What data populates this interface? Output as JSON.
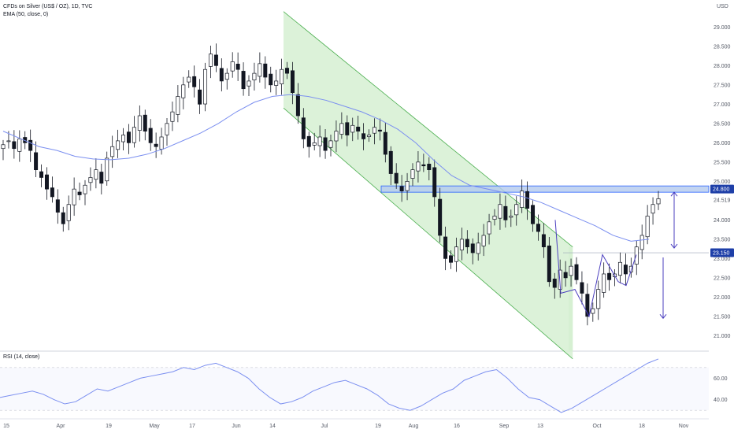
{
  "header": {
    "symbol_line": "CFDs on Silver (US$ / OZ), 1D, TVC",
    "indicator_line": "EMA (50, close, 0)",
    "currency": "USD"
  },
  "rsi_label": "RSI (14, close)",
  "price_labels": {
    "resistance": "24.800",
    "support": "23.150",
    "last": "24.519"
  },
  "colors": {
    "bull": "#ffffff",
    "bear": "#131722",
    "wick": "#131722",
    "ema": "#7b8ff0",
    "channel_fill": "#d6f0d2",
    "channel_line": "#4caf50",
    "zone_fill": "#b3c9ee",
    "zone_line": "#2962ff",
    "label_bg": "#1e3fa8",
    "pattern": "#4b3fbf",
    "rsi": "#7b8ff0"
  },
  "chart_data": {
    "type": "candlestick",
    "x_labels": [
      "15",
      "Apr",
      "19",
      "May",
      "17",
      "Jun",
      "14",
      "Jul",
      "19",
      "Aug",
      "16",
      "Sep",
      "13",
      "Oct",
      "18",
      "Nov"
    ],
    "y_ticks": [
      "29.000",
      "28.500",
      "28.000",
      "27.500",
      "27.000",
      "26.500",
      "26.000",
      "25.500",
      "25.000",
      "24.519",
      "24.000",
      "23.500",
      "23.000",
      "22.500",
      "22.000",
      "21.500",
      "21.000"
    ],
    "ylim": [
      20.6,
      29.7
    ],
    "levels": {
      "resistance": 24.8,
      "support": 23.15
    },
    "channel": {
      "upper": [
        [
          0.4,
          29.4
        ],
        [
          0.808,
          23.3
        ]
      ],
      "lower": [
        [
          0.4,
          26.9
        ],
        [
          0.808,
          20.4
        ]
      ]
    },
    "rsi_ticks": [
      "60.00",
      "40.00"
    ],
    "rsi_range": [
      25,
      75
    ],
    "prices": [
      25.95,
      26.05,
      25.85,
      26.1,
      26.0,
      25.8,
      25.3,
      25.1,
      24.8,
      24.6,
      24.2,
      23.9,
      24.4,
      24.8,
      24.65,
      24.9,
      25.1,
      25.3,
      24.95,
      25.6,
      25.9,
      26.05,
      26.2,
      26.0,
      26.4,
      26.7,
      26.3,
      26.0,
      25.9,
      26.15,
      26.5,
      26.8,
      27.2,
      27.5,
      27.7,
      27.45,
      27.0,
      27.9,
      28.3,
      28.0,
      27.6,
      27.8,
      28.1,
      27.9,
      27.4,
      27.6,
      27.8,
      28.05,
      27.7,
      27.5,
      27.6,
      27.9,
      27.8,
      27.3,
      26.7,
      26.1,
      25.9,
      26.0,
      26.15,
      25.8,
      26.05,
      26.3,
      26.5,
      26.2,
      26.45,
      26.3,
      26.1,
      26.2,
      26.4,
      26.3,
      25.7,
      25.2,
      24.95,
      24.75,
      25.0,
      25.3,
      25.5,
      25.4,
      25.3,
      24.6,
      23.6,
      23.0,
      22.9,
      23.3,
      23.5,
      23.3,
      23.15,
      23.4,
      23.6,
      23.95,
      24.1,
      24.4,
      24.0,
      24.1,
      24.4,
      24.75,
      24.3,
      23.9,
      23.7,
      23.3,
      22.4,
      22.25,
      22.7,
      22.5,
      22.8,
      22.45,
      22.1,
      21.5,
      21.7,
      22.2,
      22.6,
      22.45,
      22.6,
      22.9,
      22.6,
      22.8,
      23.3,
      23.6,
      24.1,
      24.4,
      24.55
    ],
    "ema": [
      26.3,
      26.1,
      25.9,
      25.8,
      25.65,
      25.58,
      25.56,
      25.6,
      25.7,
      25.85,
      26.05,
      26.25,
      26.5,
      26.8,
      27.05,
      27.2,
      27.25,
      27.2,
      27.1,
      26.95,
      26.8,
      26.6,
      26.35,
      26.0,
      25.55,
      25.15,
      24.9,
      24.8,
      24.7,
      24.6,
      24.45,
      24.25,
      24.05,
      23.85,
      23.6,
      23.45,
      23.5
    ],
    "rsi": [
      42,
      44,
      46,
      48,
      45,
      40,
      36,
      38,
      44,
      50,
      48,
      52,
      56,
      60,
      62,
      64,
      66,
      70,
      68,
      72,
      74,
      70,
      66,
      60,
      50,
      42,
      36,
      38,
      42,
      48,
      52,
      56,
      58,
      54,
      50,
      44,
      36,
      32,
      30,
      34,
      40,
      46,
      50,
      58,
      62,
      66,
      68,
      60,
      50,
      42,
      40,
      34,
      28,
      32,
      38,
      44,
      50,
      56,
      62,
      68,
      74,
      78
    ]
  }
}
